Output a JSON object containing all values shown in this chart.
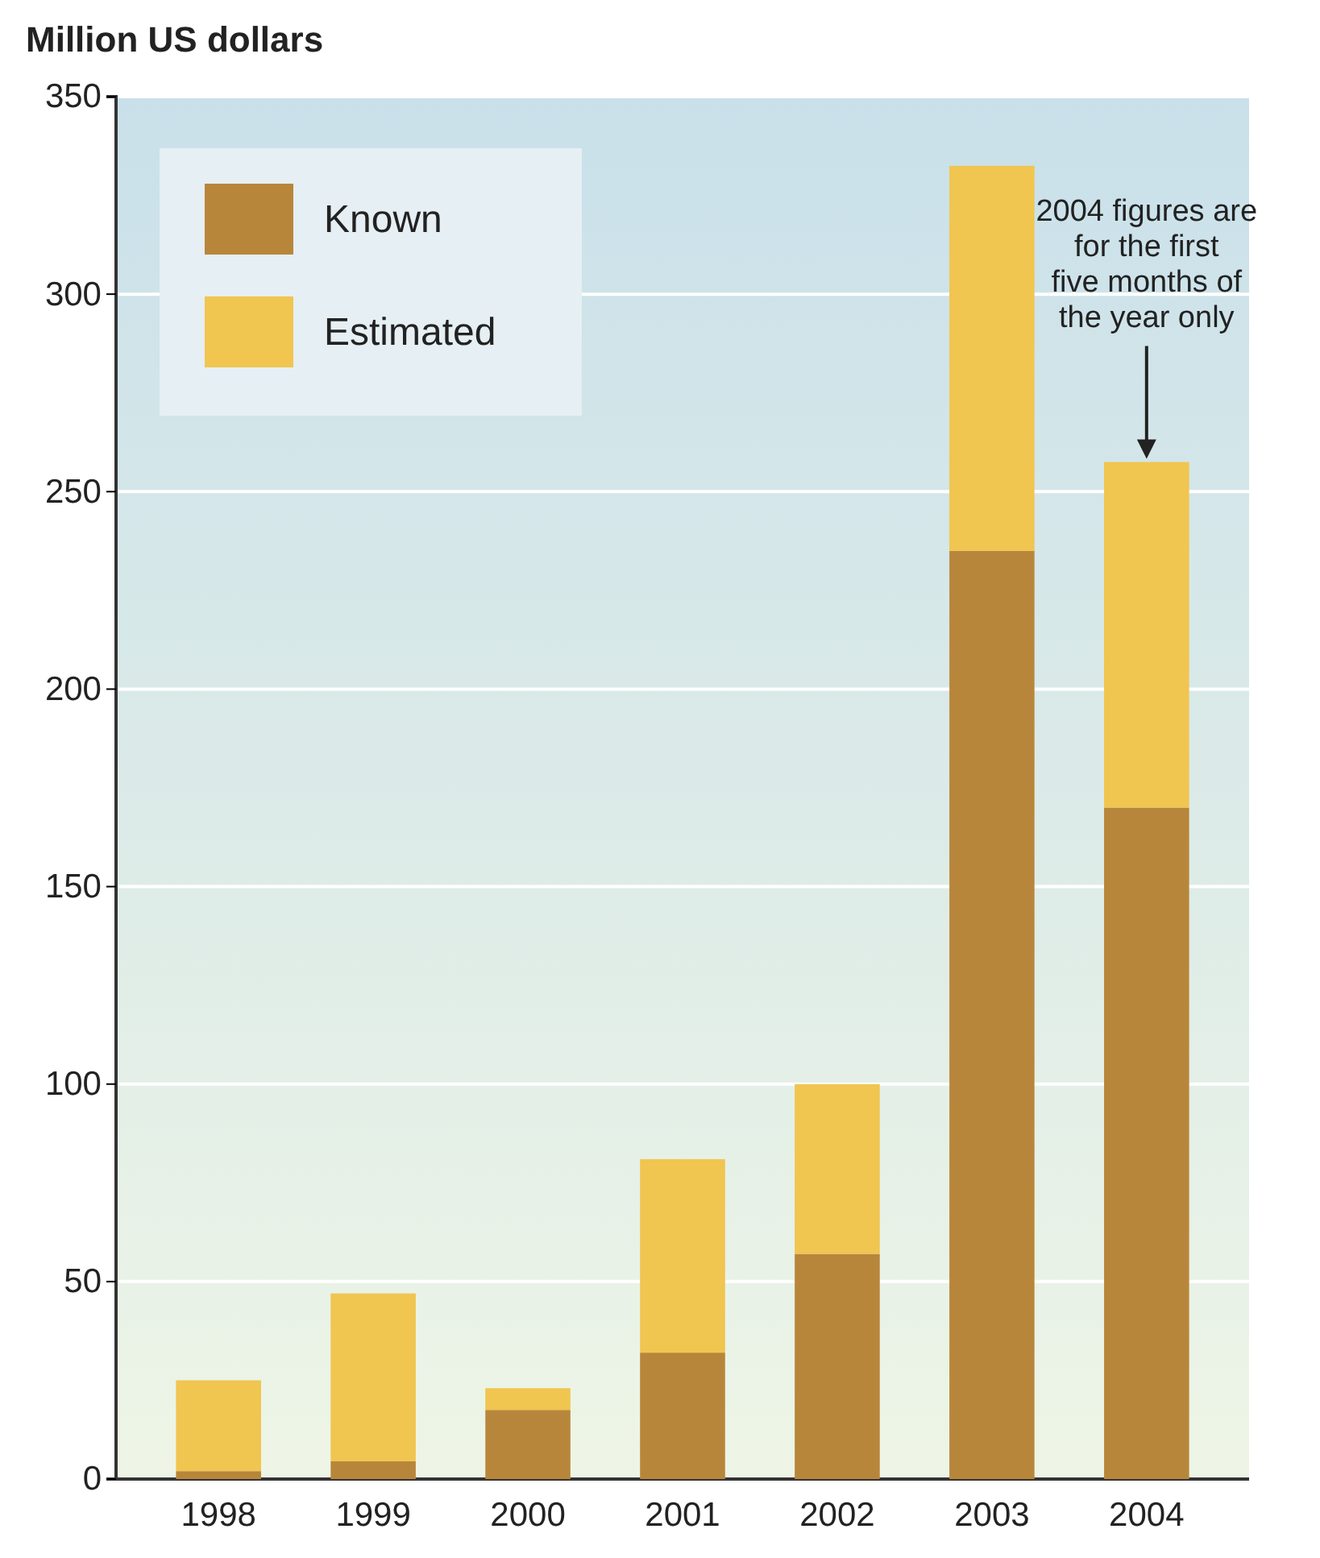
{
  "chart_data": {
    "type": "bar",
    "title": "Million US dollars",
    "stacked": true,
    "categories": [
      "1998",
      "1999",
      "2000",
      "2001",
      "2002",
      "2003",
      "2004"
    ],
    "series": [
      {
        "name": "Known",
        "color": "#b8863b",
        "values": [
          2,
          4.5,
          17.5,
          32,
          57,
          235,
          170
        ]
      },
      {
        "name": "Estimated",
        "color": "#f0c550",
        "values": [
          23,
          42.5,
          5.5,
          49,
          43,
          97.5,
          87.5
        ]
      }
    ],
    "ylim": [
      0,
      350
    ],
    "yticks": [
      0,
      50,
      100,
      150,
      200,
      250,
      300,
      350
    ],
    "grid": "y",
    "legend": "top left",
    "annotations": [
      "2004 figures are for the first five months of the year only"
    ]
  }
}
